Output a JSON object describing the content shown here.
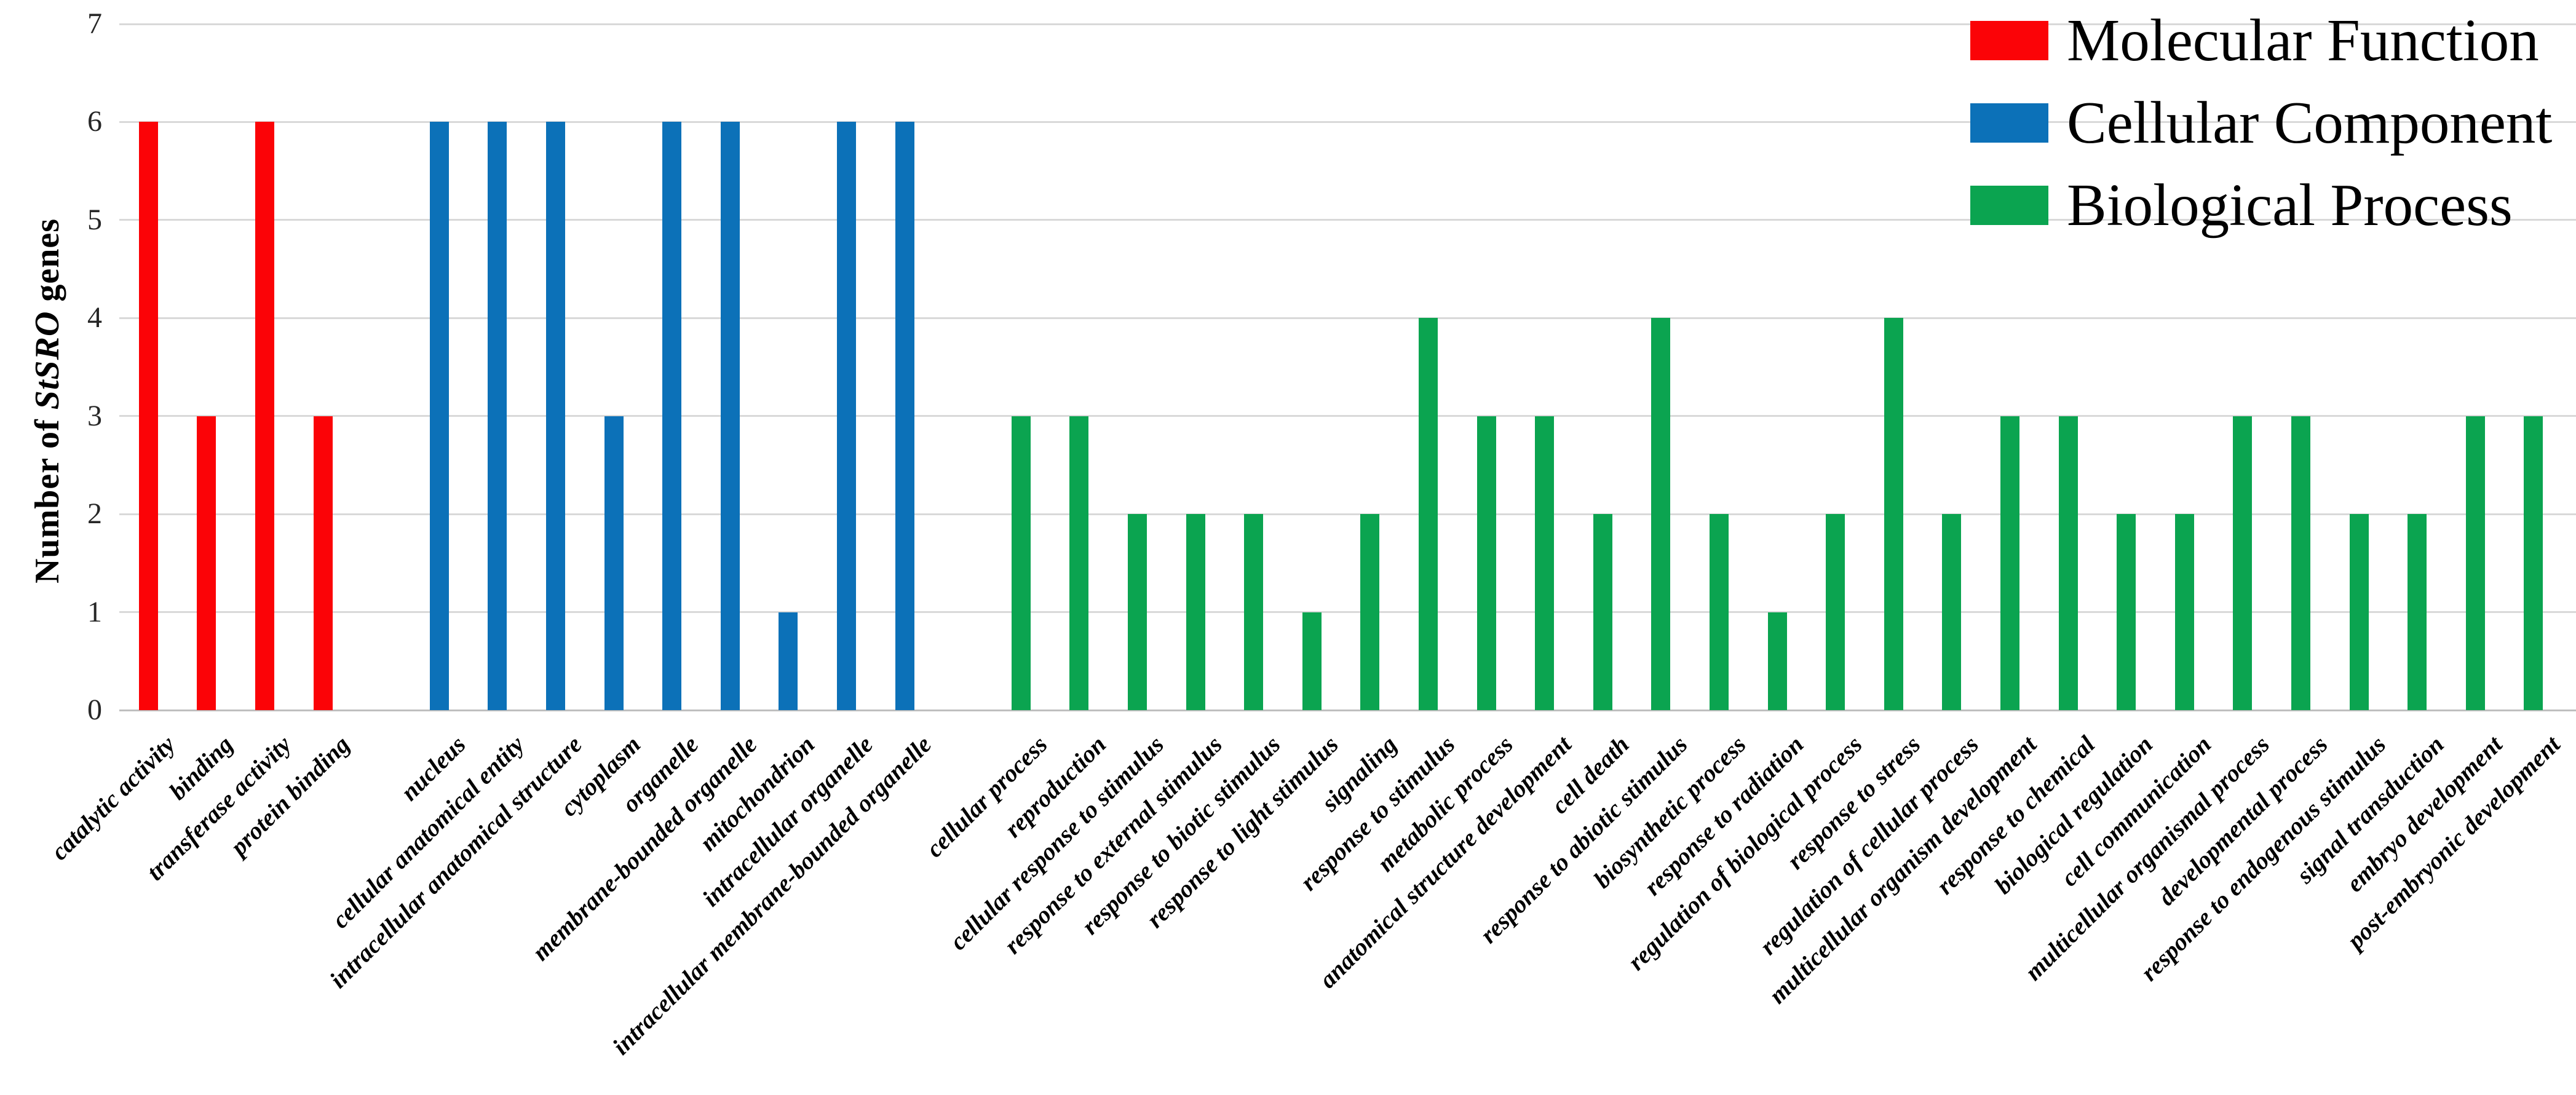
{
  "chart_data": {
    "type": "bar",
    "title": "",
    "xlabel": "",
    "ylabel": "Number of StSRO genes",
    "ylabel_parts": [
      "Number of ",
      "StSRO",
      " genes"
    ],
    "ylim": [
      0,
      7
    ],
    "yticks": [
      "0",
      "1",
      "2",
      "3",
      "4",
      "5",
      "6",
      "7"
    ],
    "grid": true,
    "legend_position": "top-right",
    "legend": [
      {
        "label": "Molecular Function",
        "color": "#fb0307"
      },
      {
        "label": "Cellular Component",
        "color": "#0c71b8"
      },
      {
        "label": "Biological Process",
        "color": "#0ba450"
      }
    ],
    "bars": [
      {
        "label": "catalytic activity",
        "value": 6,
        "group": "Molecular Function"
      },
      {
        "label": "binding",
        "value": 3,
        "group": "Molecular Function"
      },
      {
        "label": "transferase activity",
        "value": 6,
        "group": "Molecular Function"
      },
      {
        "label": "protein binding",
        "value": 3,
        "group": "Molecular Function"
      },
      {
        "label": "nucleus",
        "value": 6,
        "group": "Cellular Component"
      },
      {
        "label": "cellular anatomical entity",
        "value": 6,
        "group": "Cellular Component"
      },
      {
        "label": "intracellular anatomical structure",
        "value": 6,
        "group": "Cellular Component"
      },
      {
        "label": "cytoplasm",
        "value": 3,
        "group": "Cellular Component"
      },
      {
        "label": "organelle",
        "value": 6,
        "group": "Cellular Component"
      },
      {
        "label": "membrane-bounded organelle",
        "value": 6,
        "group": "Cellular Component"
      },
      {
        "label": "mitochondrion",
        "value": 1,
        "group": "Cellular Component"
      },
      {
        "label": "intracellular organelle",
        "value": 6,
        "group": "Cellular Component"
      },
      {
        "label": "intracellular membrane-bounded organelle",
        "value": 6,
        "group": "Cellular Component"
      },
      {
        "label": "cellular process",
        "value": 3,
        "group": "Biological Process"
      },
      {
        "label": "reproduction",
        "value": 3,
        "group": "Biological Process"
      },
      {
        "label": "cellular response to stimulus",
        "value": 2,
        "group": "Biological Process"
      },
      {
        "label": "response to external stimulus",
        "value": 2,
        "group": "Biological Process"
      },
      {
        "label": "response to biotic stimulus",
        "value": 2,
        "group": "Biological Process"
      },
      {
        "label": "response to light stimulus",
        "value": 1,
        "group": "Biological Process"
      },
      {
        "label": "signaling",
        "value": 2,
        "group": "Biological Process"
      },
      {
        "label": "response to stimulus",
        "value": 4,
        "group": "Biological Process"
      },
      {
        "label": "metabolic process",
        "value": 3,
        "group": "Biological Process"
      },
      {
        "label": "anatomical structure development",
        "value": 3,
        "group": "Biological Process"
      },
      {
        "label": "cell death",
        "value": 2,
        "group": "Biological Process"
      },
      {
        "label": "response to abiotic stimulus",
        "value": 4,
        "group": "Biological Process"
      },
      {
        "label": "biosynthetic process",
        "value": 2,
        "group": "Biological Process"
      },
      {
        "label": "response to radiation",
        "value": 1,
        "group": "Biological Process"
      },
      {
        "label": "regulation of biological process",
        "value": 2,
        "group": "Biological Process"
      },
      {
        "label": "response to stress",
        "value": 4,
        "group": "Biological Process"
      },
      {
        "label": "regulation of cellular process",
        "value": 2,
        "group": "Biological Process"
      },
      {
        "label": "multicellular organism development",
        "value": 3,
        "group": "Biological Process"
      },
      {
        "label": "response to chemical",
        "value": 3,
        "group": "Biological Process"
      },
      {
        "label": "biological regulation",
        "value": 2,
        "group": "Biological Process"
      },
      {
        "label": "cell communication",
        "value": 2,
        "group": "Biological Process"
      },
      {
        "label": "multicellular organismal process",
        "value": 3,
        "group": "Biological Process"
      },
      {
        "label": "developmental process",
        "value": 3,
        "group": "Biological Process"
      },
      {
        "label": "response to endogenous stimulus",
        "value": 2,
        "group": "Biological Process"
      },
      {
        "label": "signal transduction",
        "value": 2,
        "group": "Biological Process"
      },
      {
        "label": "embryo development",
        "value": 3,
        "group": "Biological Process"
      },
      {
        "label": "post-embryonic development",
        "value": 3,
        "group": "Biological Process"
      }
    ]
  }
}
